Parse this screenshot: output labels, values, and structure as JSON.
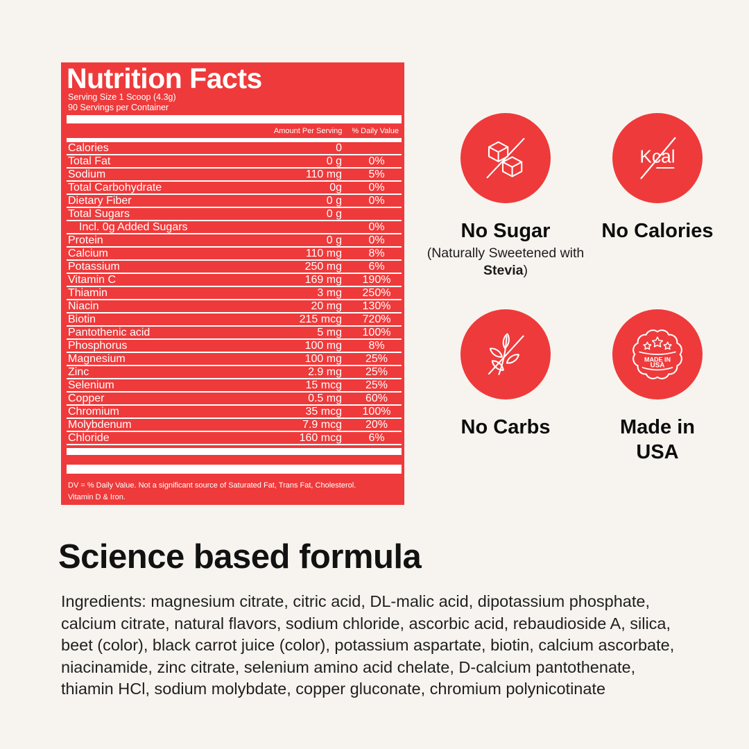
{
  "colors": {
    "accent_red": "#EE3A3B",
    "background": "#F7F4EF",
    "label_text": "#FFFFFF",
    "text_dark": "#121212"
  },
  "nutrition_label": {
    "title": "Nutrition Facts",
    "serving_size": "Serving Size 1 Scoop (4.3g)",
    "servings_per_container": "90 Servings per Container",
    "column_amount": "Amount Per Serving",
    "column_dv": "% Daily Value",
    "rows": [
      {
        "name": "Calories",
        "amount": "0",
        "dv": ""
      },
      {
        "name": "Total Fat",
        "amount": "0 g",
        "dv": "0%"
      },
      {
        "name": "Sodium",
        "amount": "110 mg",
        "dv": "5%"
      },
      {
        "name": "Total Carbohydrate",
        "amount": "0g",
        "dv": "0%"
      },
      {
        "name": "Dietary Fiber",
        "amount": "0 g",
        "dv": "0%"
      },
      {
        "name": "Total Sugars",
        "amount": "0 g",
        "dv": ""
      },
      {
        "name": "Incl. 0g Added Sugars",
        "amount": "",
        "dv": "0%",
        "indent": true
      },
      {
        "name": "Protein",
        "amount": "0 g",
        "dv": "0%"
      },
      {
        "name": "Calcium",
        "amount": "110 mg",
        "dv": "8%"
      },
      {
        "name": "Potassium",
        "amount": "250 mg",
        "dv": "6%"
      },
      {
        "name": "Vitamin C",
        "amount": "169 mg",
        "dv": "190%"
      },
      {
        "name": "Thiamin",
        "amount": "3 mg",
        "dv": "250%"
      },
      {
        "name": "Niacin",
        "amount": "20 mg",
        "dv": "130%"
      },
      {
        "name": "Biotin",
        "amount": "215 mcg",
        "dv": "720%"
      },
      {
        "name": "Pantothenic acid",
        "amount": "5 mg",
        "dv": "100%"
      },
      {
        "name": "Phosphorus",
        "amount": "100 mg",
        "dv": "8%"
      },
      {
        "name": "Magnesium",
        "amount": "100 mg",
        "dv": "25%"
      },
      {
        "name": "Zinc",
        "amount": "2.9 mg",
        "dv": "25%"
      },
      {
        "name": "Selenium",
        "amount": "15 mcg",
        "dv": "25%"
      },
      {
        "name": "Copper",
        "amount": "0.5 mg",
        "dv": "60%"
      },
      {
        "name": "Chromium",
        "amount": "35 mcg",
        "dv": "100%"
      },
      {
        "name": "Molybdenum",
        "amount": "7.9 mcg",
        "dv": "20%"
      },
      {
        "name": "Chloride",
        "amount": "160 mcg",
        "dv": "6%"
      }
    ],
    "footnote_lines": [
      "DV = % Daily Value. Not a significant source of Saturated Fat, Trans Fat, Cholesterol.",
      "Vitamin D & Iron."
    ]
  },
  "badges": [
    {
      "label": "No Sugar",
      "icon": "sugar-cubes-crossed-icon",
      "sub_pre": "(Naturally Sweetened with ",
      "sub_bold": "Stevia",
      "sub_post": ")"
    },
    {
      "label": "No Calories",
      "icon": "kcal-crossed-icon",
      "icon_text": "Kcal"
    },
    {
      "label": "No Carbs",
      "icon": "wheat-crossed-icon"
    },
    {
      "label": "Made in USA",
      "icon": "made-in-usa-seal-icon",
      "seal_line1": "MADE IN",
      "seal_line2": "USA"
    }
  ],
  "heading": "Science based formula",
  "ingredients": "Ingredients: magnesium citrate, citric acid, DL-malic acid, dipotassium phosphate, calcium citrate, natural flavors, sodium chloride, ascorbic acid, rebaudioside A, silica, beet (color), black carrot juice (color), potassium aspartate, biotin, calcium ascorbate, niacinamide, zinc citrate, selenium amino acid chelate, D-calcium pantothenate, thiamin HCl, sodium molybdate, copper gluconate, chromium polynicotinate"
}
